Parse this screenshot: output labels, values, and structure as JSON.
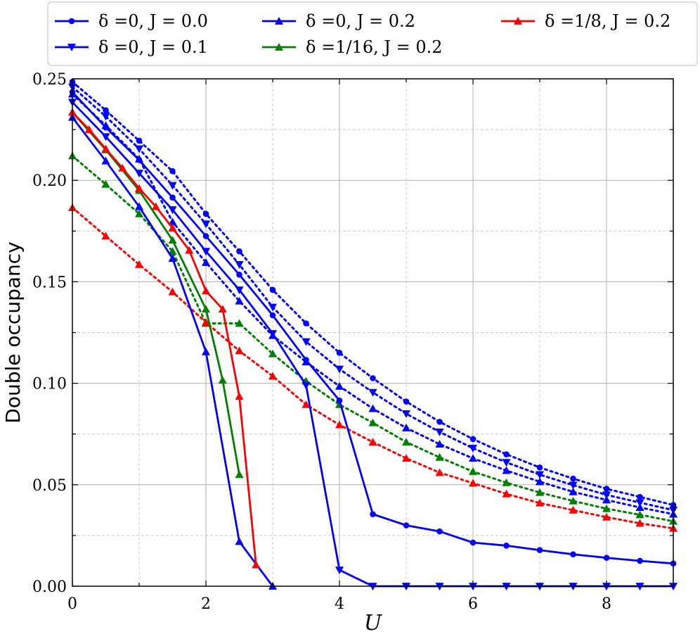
{
  "chart_data": {
    "type": "line",
    "xlabel": "U",
    "ylabel": "Double occupancy",
    "xlim": [
      0,
      9
    ],
    "ylim": [
      0,
      0.25
    ],
    "x_ticks": [
      "0",
      "2",
      "4",
      "6",
      "8"
    ],
    "y_ticks": [
      "0.00",
      "0.05",
      "0.10",
      "0.15",
      "0.20",
      "0.25"
    ],
    "grid": true,
    "legend_position": "top",
    "series": [
      {
        "name": "δ =0, J = 0.0",
        "color": "#0000ff",
        "marker": "circle",
        "line": "solid",
        "x": [
          0,
          0.5,
          1,
          1.5,
          2,
          2.5,
          3,
          3.5,
          4,
          4.5,
          5,
          5.5,
          6,
          6.5,
          7,
          7.5,
          8,
          8.5,
          9
        ],
        "y": [
          0.2435,
          0.226,
          0.21,
          0.1915,
          0.1725,
          0.1535,
          0.1335,
          0.1115,
          0.0915,
          0.0355,
          0.03,
          0.027,
          0.0215,
          0.02,
          0.0178,
          0.0157,
          0.014,
          0.0125,
          0.0112
        ]
      },
      {
        "name": "δ =0, J = 0.1",
        "color": "#0000ff",
        "marker": "triangle-down",
        "line": "solid",
        "x": [
          0,
          0.5,
          1,
          1.5,
          2,
          2.5,
          3,
          3.5,
          4,
          4.5,
          5,
          5.5,
          6,
          6.5,
          7,
          7.5,
          8,
          8.5,
          9
        ],
        "y": [
          0.2385,
          0.2215,
          0.2035,
          0.1855,
          0.165,
          0.146,
          0.1245,
          0.099,
          0.008,
          0,
          0,
          0,
          0,
          0,
          0,
          0,
          0,
          0,
          0
        ]
      },
      {
        "name": "δ =0, J = 0.2",
        "color": "#0000ff",
        "marker": "triangle-up",
        "line": "solid",
        "x": [
          0,
          0.5,
          1,
          1.5,
          2,
          2.5,
          3
        ],
        "y": [
          0.231,
          0.2095,
          0.187,
          0.1615,
          0.1155,
          0.022,
          0
        ]
      },
      {
        "name": "δ =1/16, J = 0.2",
        "color": "#008000",
        "marker": "triangle-up",
        "line": "solid",
        "x": [
          0,
          0.5,
          1,
          1.5,
          2,
          2.25,
          2.5
        ],
        "y": [
          0.2335,
          0.215,
          0.195,
          0.1705,
          0.1365,
          0.1015,
          0.055
        ]
      },
      {
        "name": "δ =1/8, J = 0.2",
        "color": "#ff0000",
        "marker": "triangle-up",
        "line": "solid",
        "x": [
          0,
          0.25,
          0.5,
          0.75,
          1,
          1.25,
          1.5,
          1.75,
          2,
          2.25,
          2.5,
          2.75
        ],
        "y": [
          0.2335,
          0.225,
          0.2155,
          0.206,
          0.196,
          0.187,
          0.1765,
          0.1655,
          0.1455,
          0.1365,
          0.0935,
          0.0105
        ]
      },
      {
        "name": "",
        "color": "#0000ff",
        "marker": "circle",
        "line": "dotted",
        "x": [
          0,
          0.5,
          1,
          1.5,
          2,
          2.5,
          3,
          3.5,
          4,
          4.5,
          5,
          5.5,
          6,
          6.5,
          7,
          7.5,
          8,
          8.5,
          9
        ],
        "y": [
          0.2485,
          0.2345,
          0.2195,
          0.2045,
          0.1835,
          0.165,
          0.146,
          0.1295,
          0.115,
          0.1025,
          0.091,
          0.081,
          0.0725,
          0.065,
          0.0585,
          0.053,
          0.048,
          0.044,
          0.04
        ]
      },
      {
        "name": "",
        "color": "#0000ff",
        "marker": "triangle-down",
        "line": "dotted",
        "x": [
          0,
          0.5,
          1,
          1.5,
          2,
          2.5,
          3,
          3.5,
          4,
          4.5,
          5,
          5.5,
          6,
          6.5,
          7,
          7.5,
          8,
          8.5,
          9
        ],
        "y": [
          0.246,
          0.2315,
          0.2155,
          0.1975,
          0.1785,
          0.1585,
          0.1375,
          0.1205,
          0.107,
          0.0955,
          0.085,
          0.076,
          0.068,
          0.061,
          0.055,
          0.0498,
          0.045,
          0.0412,
          0.0375
        ]
      },
      {
        "name": "",
        "color": "#0000ff",
        "marker": "triangle-up",
        "line": "dotted",
        "x": [
          0,
          0.5,
          1,
          1.5,
          2,
          2.5,
          3,
          3.5,
          4,
          4.5,
          5,
          5.5,
          6,
          6.5,
          7,
          7.5,
          8,
          8.5,
          9
        ],
        "y": [
          0.2425,
          0.227,
          0.2105,
          0.1795,
          0.1595,
          0.1405,
          0.1235,
          0.1105,
          0.0985,
          0.0875,
          0.078,
          0.07,
          0.063,
          0.057,
          0.0515,
          0.0465,
          0.0425,
          0.0388,
          0.0355
        ]
      },
      {
        "name": "",
        "color": "#008000",
        "marker": "triangle-up",
        "line": "dotted",
        "x": [
          0,
          0.5,
          1,
          1.5,
          2,
          2.5,
          3,
          3.5,
          4,
          4.5,
          5,
          5.5,
          6,
          6.5,
          7,
          7.5,
          8,
          8.5,
          9
        ],
        "y": [
          0.212,
          0.198,
          0.1835,
          0.165,
          0.1295,
          0.1295,
          0.1145,
          0.101,
          0.0895,
          0.0805,
          0.071,
          0.0635,
          0.0565,
          0.051,
          0.0462,
          0.042,
          0.0382,
          0.0352,
          0.032
        ]
      },
      {
        "name": "",
        "color": "#ff0000",
        "marker": "triangle-up",
        "line": "dotted",
        "x": [
          0,
          0.5,
          1,
          1.5,
          2,
          2.5,
          3,
          3.5,
          4,
          4.5,
          5,
          5.5,
          6,
          6.5,
          7,
          7.5,
          8,
          8.5,
          9
        ],
        "y": [
          0.1865,
          0.1725,
          0.1585,
          0.145,
          0.13,
          0.116,
          0.1035,
          0.0895,
          0.0795,
          0.071,
          0.063,
          0.056,
          0.0508,
          0.0455,
          0.041,
          0.0375,
          0.034,
          0.031,
          0.0285
        ]
      }
    ]
  }
}
